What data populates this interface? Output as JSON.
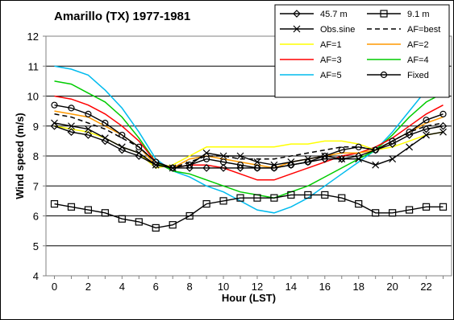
{
  "chart_data": {
    "type": "line",
    "title": "Amarillo (TX) 1977-1981",
    "xlabel": "Hour (LST)",
    "ylabel": "Wind speed (m/s)",
    "xlim": [
      -0.5,
      23.5
    ],
    "ylim": [
      4,
      12
    ],
    "x_ticks": [
      0,
      2,
      4,
      6,
      8,
      10,
      12,
      14,
      16,
      18,
      20,
      22
    ],
    "y_ticks": [
      4,
      5,
      6,
      7,
      8,
      9,
      10,
      11,
      12
    ],
    "grid": "horizontal",
    "legend_position": "top-right",
    "x": [
      0,
      1,
      2,
      3,
      4,
      5,
      6,
      7,
      8,
      9,
      10,
      11,
      12,
      13,
      14,
      15,
      16,
      17,
      18,
      19,
      20,
      21,
      22,
      23
    ],
    "series": [
      {
        "name": "45.7 m",
        "color": "#000000",
        "marker": "diamond",
        "values": [
          9.0,
          8.8,
          8.7,
          8.5,
          8.2,
          8.0,
          7.7,
          7.6,
          7.6,
          7.6,
          7.6,
          7.6,
          7.6,
          7.6,
          7.7,
          7.8,
          7.9,
          7.9,
          8.0,
          8.2,
          8.4,
          8.7,
          8.9,
          9.0
        ]
      },
      {
        "name": "9.1 m",
        "color": "#000000",
        "marker": "square",
        "values": [
          6.4,
          6.3,
          6.2,
          6.1,
          5.9,
          5.8,
          5.6,
          5.7,
          6.0,
          6.4,
          6.5,
          6.6,
          6.6,
          6.6,
          6.7,
          6.7,
          6.7,
          6.6,
          6.4,
          6.1,
          6.1,
          6.2,
          6.3,
          6.3
        ]
      },
      {
        "name": "Obs.sine",
        "color": "#000000",
        "marker": "x",
        "values": [
          9.1,
          9.0,
          8.9,
          8.6,
          8.3,
          8.1,
          7.7,
          7.6,
          7.7,
          8.1,
          8.0,
          8.0,
          7.8,
          7.7,
          7.8,
          7.9,
          8.0,
          7.9,
          7.9,
          7.7,
          7.9,
          8.3,
          8.7,
          8.8
        ]
      },
      {
        "name": "AF=best",
        "color": "#000000",
        "dash": "6,4",
        "values": [
          9.4,
          9.3,
          9.1,
          8.9,
          8.6,
          8.3,
          7.8,
          7.6,
          7.8,
          8.0,
          8.0,
          7.9,
          7.9,
          7.9,
          8.0,
          8.1,
          8.2,
          8.3,
          8.3,
          8.2,
          8.5,
          8.8,
          9.0,
          9.1
        ]
      },
      {
        "name": "AF=1",
        "color": "#ffff00",
        "values": [
          9.0,
          8.9,
          8.8,
          8.6,
          8.3,
          8.1,
          7.6,
          7.7,
          8.0,
          8.3,
          8.3,
          8.3,
          8.3,
          8.3,
          8.4,
          8.4,
          8.5,
          8.5,
          8.4,
          8.2,
          8.3,
          8.5,
          8.7,
          8.8
        ]
      },
      {
        "name": "AF=2",
        "color": "#ff9900",
        "values": [
          9.5,
          9.4,
          9.3,
          9.0,
          8.7,
          8.3,
          7.7,
          7.6,
          7.9,
          8.0,
          7.9,
          7.8,
          7.7,
          7.6,
          7.8,
          7.9,
          8.0,
          8.1,
          8.1,
          8.2,
          8.5,
          8.8,
          9.1,
          9.3
        ]
      },
      {
        "name": "AF=3",
        "color": "#ff0000",
        "values": [
          10.0,
          9.9,
          9.7,
          9.4,
          9.0,
          8.5,
          7.8,
          7.6,
          7.7,
          7.7,
          7.6,
          7.4,
          7.2,
          7.2,
          7.4,
          7.6,
          7.8,
          8.0,
          8.1,
          8.3,
          8.6,
          9.0,
          9.4,
          9.7
        ]
      },
      {
        "name": "AF=4",
        "color": "#00cc00",
        "values": [
          10.5,
          10.4,
          10.1,
          9.8,
          9.3,
          8.6,
          7.8,
          7.5,
          7.4,
          7.2,
          7.0,
          6.8,
          6.7,
          6.6,
          6.8,
          7.0,
          7.3,
          7.6,
          7.9,
          8.2,
          8.7,
          9.3,
          9.8,
          10.1
        ]
      },
      {
        "name": "AF=5",
        "color": "#00bbee",
        "values": [
          11.0,
          10.9,
          10.7,
          10.2,
          9.6,
          8.8,
          7.9,
          7.5,
          7.3,
          7.0,
          6.8,
          6.5,
          6.2,
          6.1,
          6.3,
          6.6,
          7.0,
          7.4,
          7.8,
          8.2,
          8.8,
          9.5,
          10.2,
          10.5
        ]
      },
      {
        "name": "Fixed",
        "color": "#000000",
        "marker": "circle",
        "values": [
          9.7,
          9.6,
          9.4,
          9.1,
          8.7,
          8.3,
          7.8,
          7.6,
          7.7,
          7.9,
          7.8,
          7.7,
          7.6,
          7.6,
          7.7,
          7.8,
          8.0,
          8.2,
          8.3,
          8.2,
          8.5,
          8.8,
          9.2,
          9.4
        ]
      }
    ]
  }
}
